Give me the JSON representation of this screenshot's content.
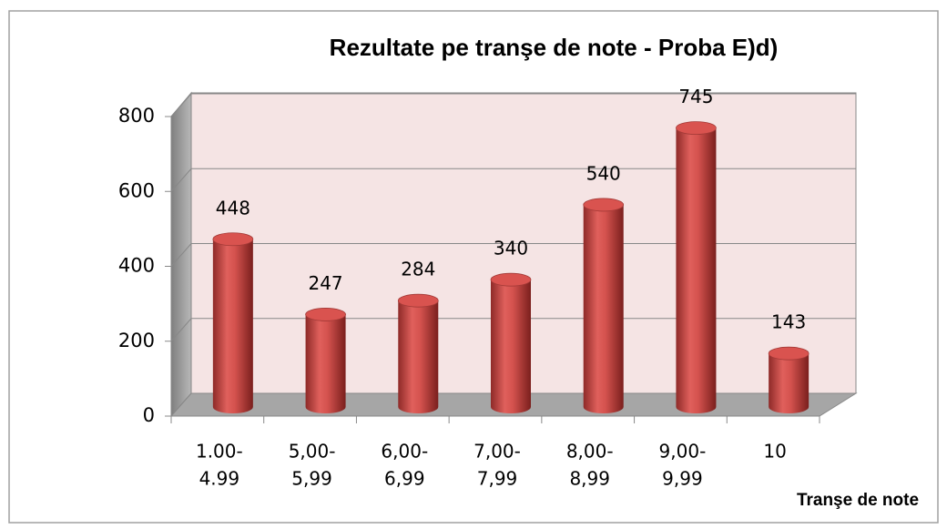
{
  "chart_data": {
    "type": "bar3d",
    "title": "Rezultate pe tranşe de note - Proba E)d)",
    "categories": [
      [
        "1.00-",
        "4.99"
      ],
      [
        "5,00-",
        "5,99"
      ],
      [
        "6,00-",
        "6,99"
      ],
      [
        "7,00-",
        "7,99"
      ],
      [
        "8,00-",
        "8,99"
      ],
      [
        "9,00-",
        "9,99"
      ],
      [
        "10"
      ]
    ],
    "values": [
      448,
      247,
      284,
      340,
      540,
      745,
      143
    ],
    "color": "#c0504d",
    "x_label": "Tranşe de note",
    "ylim": [
      0,
      800
    ],
    "yticks": [
      0,
      200,
      400,
      600,
      800
    ],
    "grid": true
  }
}
